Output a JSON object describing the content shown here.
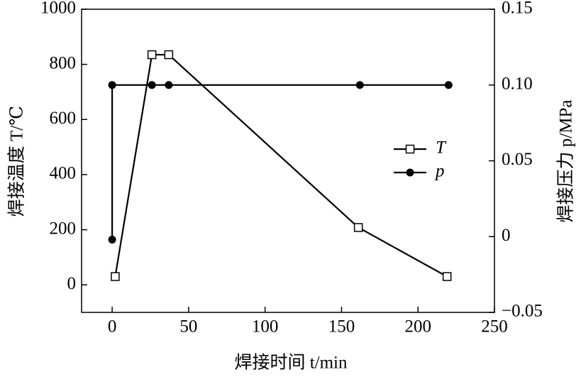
{
  "chart_data": {
    "type": "line",
    "xlabel": "焊接时间 t/min",
    "ylabel": "焊接温度 T/℃",
    "y2label": "焊接压力 p/MPa",
    "xlim": [
      -20,
      250
    ],
    "xticks": [
      0,
      50,
      100,
      150,
      200,
      250
    ],
    "ylim": [
      -100,
      1000
    ],
    "yticks": [
      0,
      200,
      400,
      600,
      800,
      1000
    ],
    "y2lim": [
      -0.05,
      0.15
    ],
    "y2ticks": [
      {
        "value": -0.05,
        "label": "−0.05"
      },
      0,
      0.05,
      {
        "value": 0.1,
        "label": "0.10"
      },
      0.15
    ],
    "legend": "right",
    "series": [
      {
        "name": "T",
        "color": "#000000",
        "marker": "square",
        "x": [
          2,
          26,
          37,
          161,
          219
        ],
        "values": [
          30,
          835,
          835,
          208,
          30
        ]
      },
      {
        "name": "p",
        "color": "#000000",
        "marker": "circle",
        "axis": "y2",
        "x": [
          0,
          0,
          26,
          37,
          162,
          220
        ],
        "values": [
          -0.002,
          0.1,
          0.1,
          0.1,
          0.1,
          0.1
        ]
      }
    ]
  }
}
